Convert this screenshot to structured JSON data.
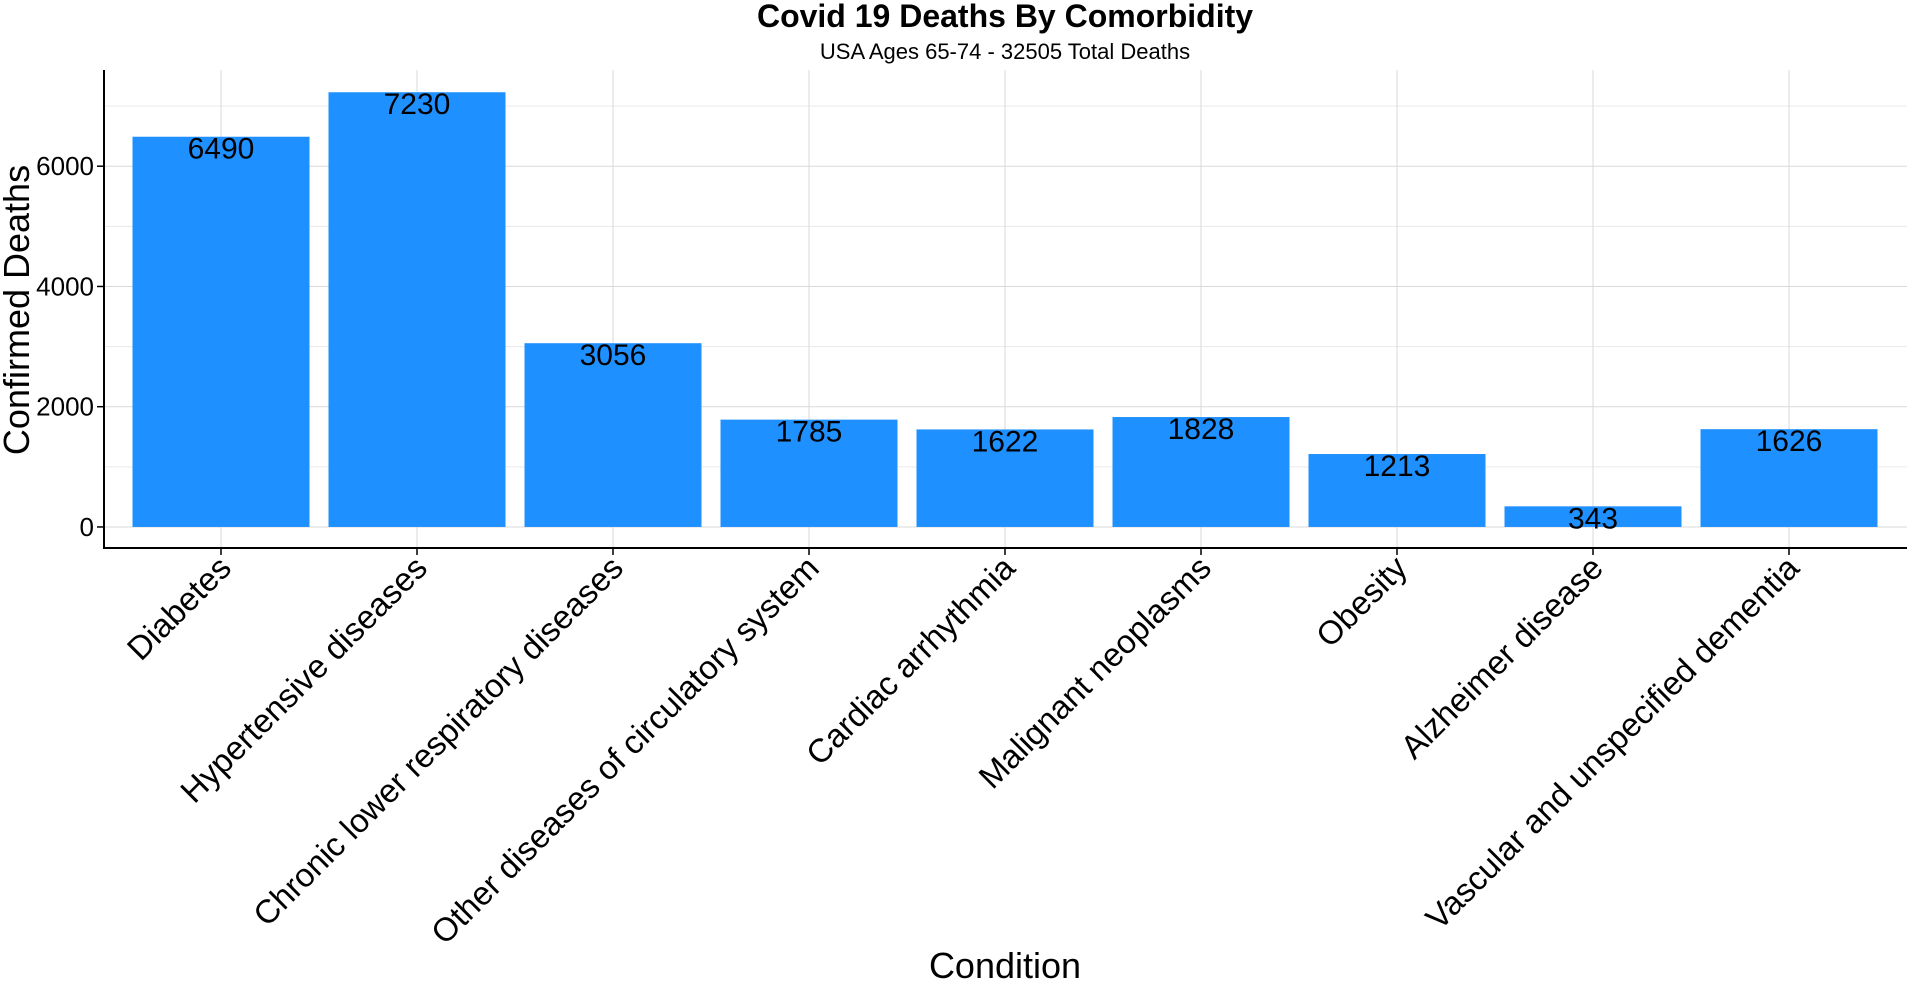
{
  "chart_data": {
    "type": "bar",
    "title": "Covid 19 Deaths By Comorbidity",
    "subtitle": "USA Ages 65-74 - 32505 Total Deaths",
    "xlabel": "Condition",
    "ylabel": "Confirmed Deaths",
    "categories": [
      "Diabetes",
      "Hypertensive diseases",
      "Chronic lower respiratory diseases",
      "Other diseases of circulatory system",
      "Cardiac arrhythmia",
      "Malignant neoplasms",
      "Obesity",
      "Alzheimer disease",
      "Vascular and unspecified dementia"
    ],
    "values": [
      6490,
      7230,
      3056,
      1785,
      1622,
      1828,
      1213,
      343,
      1626
    ],
    "data_labels": [
      "6490",
      "7230",
      "3056",
      "1785",
      "1622",
      "1828",
      "1213",
      "343",
      "1626"
    ],
    "y_ticks": [
      0,
      2000,
      4000,
      6000
    ],
    "y_tick_labels": [
      "0",
      "2000",
      "4000",
      "6000"
    ],
    "ylim": [
      -350,
      7600
    ],
    "grid": true,
    "legend": "none",
    "bar_color": "#1E90FF",
    "grid_color": "#D9D9D9"
  }
}
